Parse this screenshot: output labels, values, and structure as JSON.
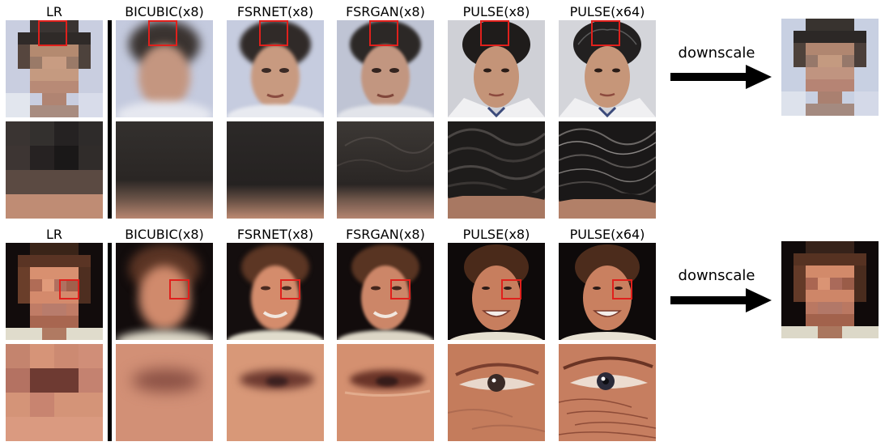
{
  "columns": [
    "LR",
    "BICUBIC(x8)",
    "FSRNET(x8)",
    "FSRGAN(x8)",
    "PULSE(x8)",
    "PULSE(x64)"
  ],
  "arrow_label": "downscale",
  "colors": {
    "highlight_box": "#e0201c",
    "separator": "#000000",
    "example1_bg": "#c7cde0",
    "example1_hair": "#2e2a28",
    "example1_skin": "#c89a80",
    "example2_bg": "#151010",
    "example2_hair": "#4a2c1c",
    "example2_skin": "#d89270"
  },
  "examples": [
    {
      "id": "example-1",
      "subject": "man with dark hair",
      "zoom_region": "hair"
    },
    {
      "id": "example-2",
      "subject": "smiling man with brown hair",
      "zoom_region": "eye"
    }
  ]
}
